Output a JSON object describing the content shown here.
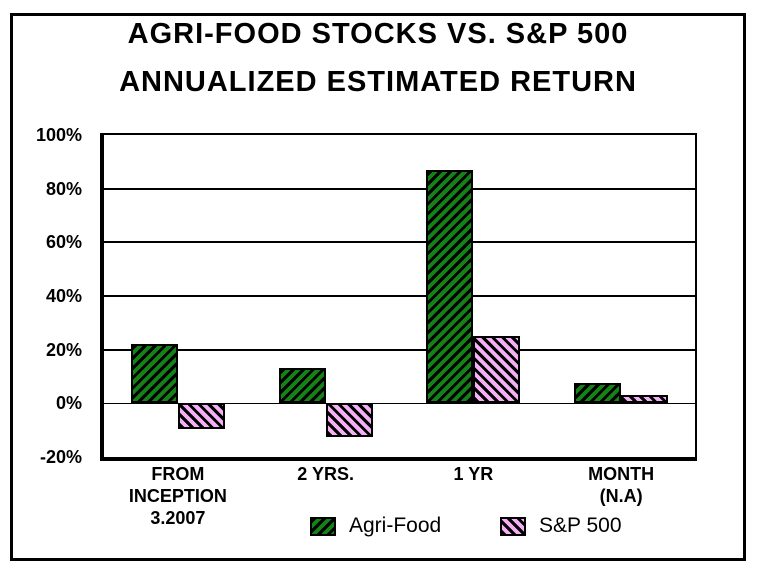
{
  "title": {
    "line1": "AGRI-FOOD STOCKS VS. S&P 500",
    "line2": "ANNUALIZED ESTIMATED RETURN"
  },
  "chart_data": {
    "type": "bar",
    "title": "AGRI-FOOD STOCKS VS. S&P 500 ANNUALIZED ESTIMATED RETURN",
    "categories": [
      [
        "FROM",
        "INCEPTION",
        "3.2007"
      ],
      [
        "2 YRS."
      ],
      [
        "1 YR"
      ],
      [
        "MONTH",
        "(N.A)"
      ]
    ],
    "series": [
      {
        "name": "Agri-Food",
        "color": "#148214",
        "hatch": "forward-diagonal",
        "values": [
          22,
          13,
          87,
          7.5
        ]
      },
      {
        "name": "S&P 500",
        "color": "#f5aff5",
        "hatch": "backward-diagonal",
        "values": [
          -9.5,
          -12.5,
          25,
          3
        ]
      }
    ],
    "xlabel": "",
    "ylabel": "",
    "ylim": [
      -20,
      100
    ],
    "ytick_values": [
      100,
      80,
      60,
      40,
      20,
      0,
      -20
    ],
    "ytick_labels": [
      "100%",
      "80%",
      "60%",
      "40%",
      "20%",
      "0%",
      "-20%"
    ],
    "grid": true,
    "legend_position": "bottom"
  },
  "colors": {
    "agri_food": "#148214",
    "sp500": "#f5aff5",
    "axis": "#000000",
    "background": "#ffffff"
  }
}
